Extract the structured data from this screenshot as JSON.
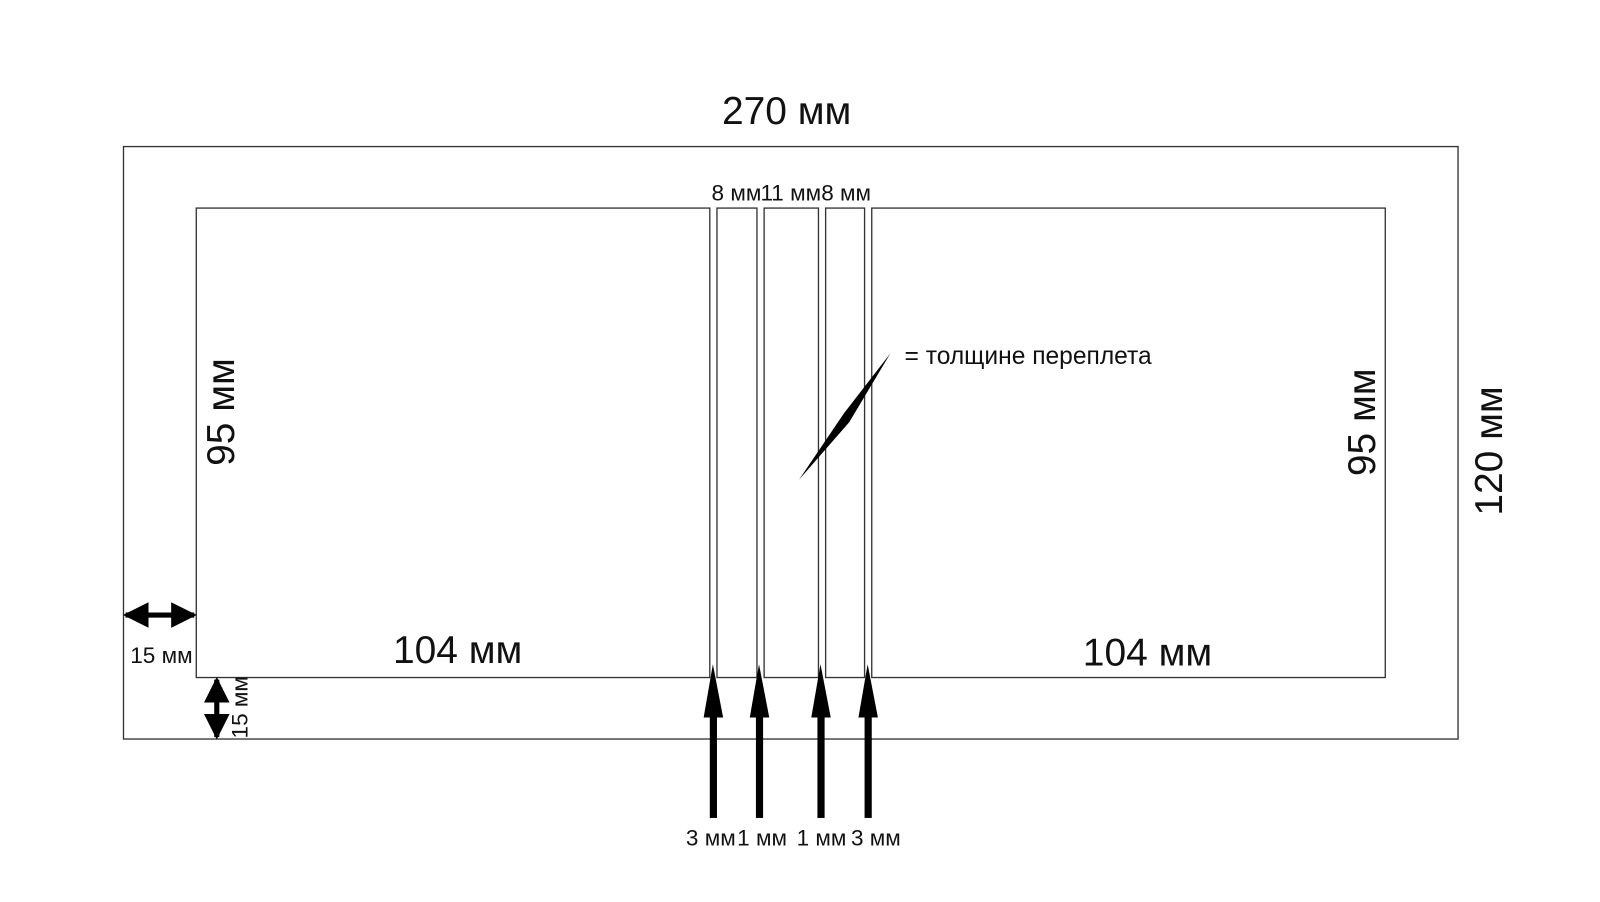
{
  "dimensions": {
    "total_width": "270 мм",
    "total_height": "120 мм",
    "left_page_width": "104 мм",
    "right_page_width": "104 мм",
    "left_page_height": "95 мм",
    "right_page_height": "95 мм",
    "margin_left": "15 мм",
    "margin_bottom": "15 мм"
  },
  "spine": {
    "top_labels": [
      "8 мм",
      "11 мм",
      "8 мм"
    ],
    "bottom_labels": [
      "3 мм",
      "1 мм",
      "1 мм",
      "3 мм"
    ]
  },
  "annotation": "= толщине переплета"
}
